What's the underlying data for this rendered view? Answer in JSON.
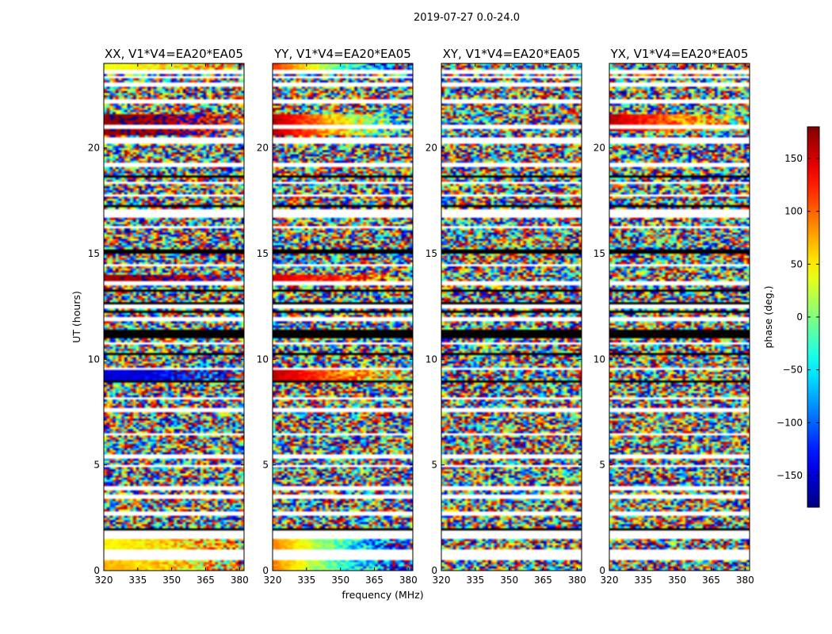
{
  "chart_data": {
    "type": "heatmap",
    "suptitle": "2019-07-27 0.0-24.0",
    "xlabel": "frequency (MHz)",
    "ylabel": "UT (hours)",
    "xlim": [
      320,
      382
    ],
    "ylim": [
      0,
      24
    ],
    "xticks": [
      "320",
      "335",
      "350",
      "365",
      "380"
    ],
    "yticks": [
      "0",
      "5",
      "10",
      "15",
      "20"
    ],
    "colorbar": {
      "label": "phase (deg.)",
      "range": [
        -180,
        180
      ],
      "ticks": [
        "150",
        "100",
        "50",
        "0",
        "−50",
        "−100",
        "−150"
      ],
      "tick_values": [
        150,
        100,
        50,
        0,
        -50,
        -100,
        -150
      ],
      "colormap": "jet"
    },
    "panels": [
      {
        "title": "XX, V1*V4=EA20*EA05",
        "pol": "XX"
      },
      {
        "title": "YY, V1*V4=EA20*EA05",
        "pol": "YY"
      },
      {
        "title": "XY, V1*V4=EA20*EA05",
        "pol": "XY"
      },
      {
        "title": "YX, V1*V4=EA20*EA05",
        "pol": "YX"
      }
    ],
    "blank_gaps_hours": [
      [
        0.55,
        0.95
      ],
      [
        1.45,
        1.9
      ],
      [
        2.65,
        2.85
      ],
      [
        3.45,
        3.6
      ],
      [
        3.85,
        3.95
      ],
      [
        4.65,
        4.75
      ],
      [
        4.95,
        5.05
      ],
      [
        5.35,
        5.45
      ],
      [
        6.45,
        6.55
      ],
      [
        7.55,
        7.65
      ],
      [
        8.15,
        8.25
      ],
      [
        8.55,
        8.65
      ],
      [
        9.55,
        9.65
      ],
      [
        10.05,
        10.15
      ],
      [
        10.65,
        10.8
      ],
      [
        11.55,
        11.65
      ],
      [
        11.85,
        12.0
      ],
      [
        12.45,
        12.55
      ],
      [
        13.55,
        13.7
      ],
      [
        14.45,
        14.55
      ],
      [
        16.25,
        16.35
      ],
      [
        16.75,
        17.05
      ],
      [
        17.75,
        17.85
      ],
      [
        18.35,
        18.45
      ],
      [
        19.15,
        19.35
      ],
      [
        20.25,
        20.55
      ],
      [
        20.95,
        21.15
      ],
      [
        22.15,
        22.35
      ],
      [
        22.95,
        23.1
      ],
      [
        23.35,
        23.45
      ],
      [
        23.55,
        23.75
      ]
    ],
    "dark_stripes_hours": [
      [
        1.9,
        2.0
      ],
      [
        8.95,
        9.05
      ],
      [
        10.25,
        10.35
      ],
      [
        11.05,
        11.45
      ],
      [
        12.25,
        12.35
      ],
      [
        12.65,
        12.75
      ],
      [
        13.25,
        13.35
      ],
      [
        15.05,
        15.15
      ],
      [
        15.55,
        15.65
      ],
      [
        17.25,
        17.35
      ],
      [
        18.65,
        18.75
      ]
    ],
    "coherent_phase_bands": [
      {
        "pol": "XX",
        "hours": [
          23.5,
          24.0
        ],
        "phase_start_deg": 40,
        "phase_end_deg": 60
      },
      {
        "pol": "XX",
        "hours": [
          0.95,
          1.45
        ],
        "phase_start_deg": 45,
        "phase_end_deg": 70
      },
      {
        "pol": "XX",
        "hours": [
          0.0,
          0.55
        ],
        "phase_start_deg": 70,
        "phase_end_deg": 40
      },
      {
        "pol": "XX",
        "hours": [
          20.6,
          21.6
        ],
        "phase_start_deg": 175,
        "phase_end_deg": 170
      },
      {
        "pol": "XX",
        "hours": [
          13.7,
          14.0
        ],
        "phase_start_deg": 170,
        "phase_end_deg": 175
      },
      {
        "pol": "XX",
        "hours": [
          9.0,
          9.5
        ],
        "phase_start_deg": -150,
        "phase_end_deg": -130
      },
      {
        "pol": "YY",
        "hours": [
          23.5,
          24.0
        ],
        "phase_start_deg": 120,
        "phase_end_deg": -160
      },
      {
        "pol": "YY",
        "hours": [
          0.95,
          1.45
        ],
        "phase_start_deg": 90,
        "phase_end_deg": -150
      },
      {
        "pol": "YY",
        "hours": [
          0.0,
          0.55
        ],
        "phase_start_deg": 90,
        "phase_end_deg": -150
      },
      {
        "pol": "YY",
        "hours": [
          20.6,
          21.6
        ],
        "phase_start_deg": 165,
        "phase_end_deg": -60
      },
      {
        "pol": "YY",
        "hours": [
          13.6,
          14.0
        ],
        "phase_start_deg": 150,
        "phase_end_deg": 80
      },
      {
        "pol": "YY",
        "hours": [
          9.0,
          9.5
        ],
        "phase_start_deg": 160,
        "phase_end_deg": 20
      },
      {
        "pol": "YX",
        "hours": [
          20.8,
          21.6
        ],
        "phase_start_deg": 160,
        "phase_end_deg": 20
      }
    ]
  }
}
